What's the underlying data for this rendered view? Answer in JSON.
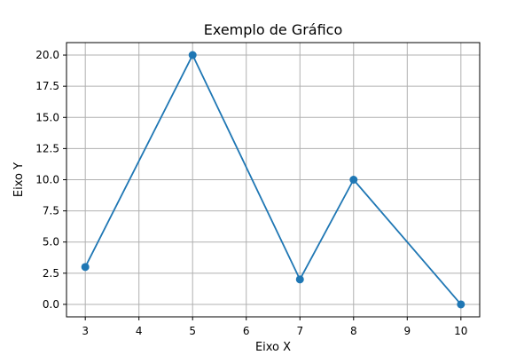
{
  "chart_data": {
    "type": "line",
    "title": "Exemplo de Gráfico",
    "xlabel": "Eixo X",
    "ylabel": "Eixo Y",
    "x": [
      3,
      5,
      7,
      8,
      10
    ],
    "series": [
      {
        "values": [
          3,
          20,
          2,
          10,
          0
        ],
        "color": "#1f77b4",
        "marker": "circle"
      }
    ],
    "xlim": [
      2.65,
      10.35
    ],
    "ylim": [
      -1,
      21
    ],
    "xticks": [
      3,
      4,
      5,
      6,
      7,
      8,
      9,
      10
    ],
    "xtick_labels": [
      "3",
      "4",
      "5",
      "6",
      "7",
      "8",
      "9",
      "10"
    ],
    "yticks": [
      0,
      2.5,
      5,
      7.5,
      10,
      12.5,
      15,
      17.5,
      20
    ],
    "ytick_labels": [
      "0.0",
      "2.5",
      "5.0",
      "7.5",
      "10.0",
      "12.5",
      "15.0",
      "17.5",
      "20.0"
    ],
    "grid": true,
    "grid_color": "#b0b0b0"
  }
}
